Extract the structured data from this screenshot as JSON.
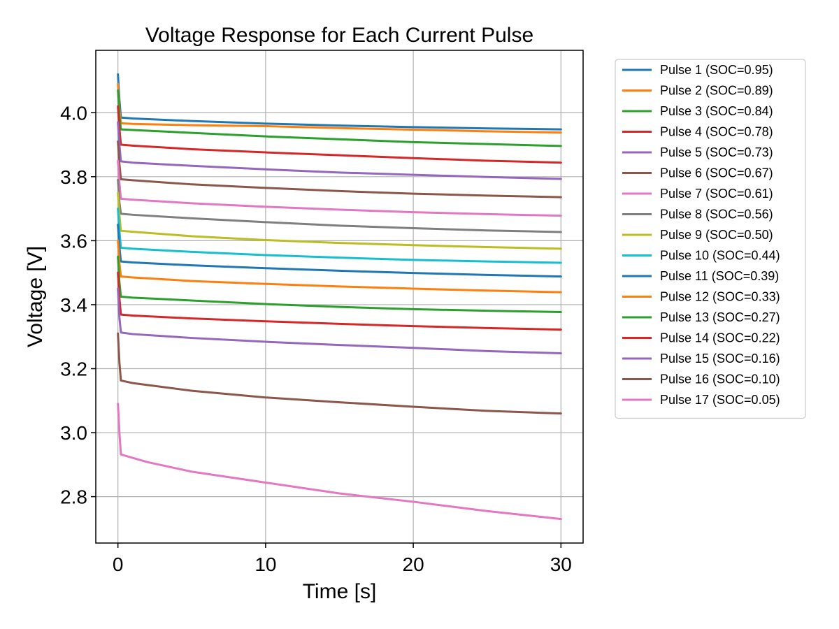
{
  "chart_data": {
    "type": "line",
    "title": "Voltage Response for Each Current Pulse",
    "xlabel": "Time [s]",
    "ylabel": "Voltage [V]",
    "xlim": [
      -1.5,
      31.5
    ],
    "ylim": [
      2.655,
      4.195
    ],
    "xticks": [
      0,
      10,
      20,
      30
    ],
    "xtick_labels": [
      "0",
      "10",
      "20",
      "30"
    ],
    "yticks": [
      2.8,
      3.0,
      3.2,
      3.4,
      3.6,
      3.8,
      4.0
    ],
    "ytick_labels": [
      "2.8",
      "3.0",
      "3.2",
      "3.4",
      "3.6",
      "3.8",
      "4.0"
    ],
    "grid": true,
    "legend_position": "outside-right-top",
    "series": [
      {
        "name": "Pulse 1 (SOC=0.95)",
        "color": "#1f77b4",
        "x": [
          0,
          0.1,
          0.2,
          1,
          5,
          10,
          15,
          20,
          25,
          30
        ],
        "y": [
          4.12,
          4.04,
          3.985,
          3.982,
          3.974,
          3.966,
          3.96,
          3.955,
          3.951,
          3.948
        ]
      },
      {
        "name": "Pulse 2 (SOC=0.89)",
        "color": "#ff7f0e",
        "x": [
          0,
          0.1,
          0.2,
          1,
          5,
          10,
          15,
          20,
          25,
          30
        ],
        "y": [
          4.09,
          4.01,
          3.967,
          3.965,
          3.961,
          3.958,
          3.952,
          3.947,
          3.942,
          3.938
        ]
      },
      {
        "name": "Pulse 3 (SOC=0.84)",
        "color": "#2ca02c",
        "x": [
          0,
          0.1,
          0.2,
          1,
          5,
          10,
          15,
          20,
          25,
          30
        ],
        "y": [
          4.07,
          3.99,
          3.948,
          3.946,
          3.937,
          3.926,
          3.917,
          3.908,
          3.902,
          3.896
        ]
      },
      {
        "name": "Pulse 4 (SOC=0.78)",
        "color": "#d62728",
        "x": [
          0,
          0.1,
          0.2,
          1,
          5,
          10,
          15,
          20,
          25,
          30
        ],
        "y": [
          4.02,
          3.95,
          3.9,
          3.897,
          3.886,
          3.876,
          3.867,
          3.858,
          3.85,
          3.844
        ]
      },
      {
        "name": "Pulse 5 (SOC=0.73)",
        "color": "#9467bd",
        "x": [
          0,
          0.1,
          0.2,
          1,
          5,
          10,
          15,
          20,
          25,
          30
        ],
        "y": [
          3.97,
          3.9,
          3.848,
          3.844,
          3.834,
          3.823,
          3.813,
          3.806,
          3.799,
          3.793
        ]
      },
      {
        "name": "Pulse 6 (SOC=0.67)",
        "color": "#8c564b",
        "x": [
          0,
          0.1,
          0.2,
          1,
          5,
          10,
          15,
          20,
          25,
          30
        ],
        "y": [
          3.91,
          3.84,
          3.792,
          3.789,
          3.776,
          3.765,
          3.755,
          3.747,
          3.741,
          3.736
        ]
      },
      {
        "name": "Pulse 7 (SOC=0.61)",
        "color": "#e377c2",
        "x": [
          0,
          0.1,
          0.2,
          1,
          5,
          10,
          15,
          20,
          25,
          30
        ],
        "y": [
          3.85,
          3.78,
          3.731,
          3.728,
          3.717,
          3.706,
          3.697,
          3.689,
          3.683,
          3.678
        ]
      },
      {
        "name": "Pulse 8 (SOC=0.56)",
        "color": "#7f7f7f",
        "x": [
          0,
          0.1,
          0.2,
          1,
          5,
          10,
          15,
          20,
          25,
          30
        ],
        "y": [
          3.79,
          3.72,
          3.684,
          3.681,
          3.67,
          3.658,
          3.647,
          3.639,
          3.632,
          3.627
        ]
      },
      {
        "name": "Pulse 9 (SOC=0.50)",
        "color": "#bcbd22",
        "x": [
          0,
          0.1,
          0.2,
          1,
          5,
          10,
          15,
          20,
          25,
          30
        ],
        "y": [
          3.75,
          3.68,
          3.631,
          3.628,
          3.614,
          3.602,
          3.593,
          3.586,
          3.58,
          3.575
        ]
      },
      {
        "name": "Pulse 10 (SOC=0.44)",
        "color": "#17becf",
        "x": [
          0,
          0.1,
          0.2,
          1,
          5,
          10,
          15,
          20,
          25,
          30
        ],
        "y": [
          3.7,
          3.63,
          3.578,
          3.575,
          3.565,
          3.555,
          3.547,
          3.54,
          3.535,
          3.531
        ]
      },
      {
        "name": "Pulse 11 (SOC=0.39)",
        "color": "#1f77b4",
        "x": [
          0,
          0.1,
          0.2,
          1,
          5,
          10,
          15,
          20,
          25,
          30
        ],
        "y": [
          3.65,
          3.58,
          3.535,
          3.532,
          3.523,
          3.514,
          3.506,
          3.499,
          3.493,
          3.488
        ]
      },
      {
        "name": "Pulse 12 (SOC=0.33)",
        "color": "#ff7f0e",
        "x": [
          0,
          0.1,
          0.2,
          1,
          5,
          10,
          15,
          20,
          25,
          30
        ],
        "y": [
          3.6,
          3.53,
          3.488,
          3.485,
          3.474,
          3.465,
          3.457,
          3.45,
          3.444,
          3.439
        ]
      },
      {
        "name": "Pulse 13 (SOC=0.27)",
        "color": "#2ca02c",
        "x": [
          0,
          0.1,
          0.2,
          1,
          5,
          10,
          15,
          20,
          25,
          30
        ],
        "y": [
          3.55,
          3.47,
          3.425,
          3.422,
          3.413,
          3.402,
          3.393,
          3.386,
          3.381,
          3.377
        ]
      },
      {
        "name": "Pulse 14 (SOC=0.22)",
        "color": "#d62728",
        "x": [
          0,
          0.1,
          0.2,
          1,
          5,
          10,
          15,
          20,
          25,
          30
        ],
        "y": [
          3.5,
          3.42,
          3.369,
          3.366,
          3.357,
          3.348,
          3.34,
          3.333,
          3.327,
          3.322
        ]
      },
      {
        "name": "Pulse 15 (SOC=0.16)",
        "color": "#9467bd",
        "x": [
          0,
          0.1,
          0.2,
          1,
          5,
          10,
          15,
          20,
          25,
          30
        ],
        "y": [
          3.45,
          3.36,
          3.313,
          3.308,
          3.296,
          3.284,
          3.274,
          3.265,
          3.255,
          3.248
        ]
      },
      {
        "name": "Pulse 16 (SOC=0.10)",
        "color": "#8c564b",
        "x": [
          0,
          0.1,
          0.2,
          1,
          5,
          10,
          15,
          20,
          25,
          30
        ],
        "y": [
          3.31,
          3.22,
          3.163,
          3.155,
          3.131,
          3.11,
          3.095,
          3.081,
          3.068,
          3.06
        ]
      },
      {
        "name": "Pulse 17 (SOC=0.05)",
        "color": "#e377c2",
        "x": [
          0,
          0.1,
          0.2,
          1,
          2,
          5,
          10,
          15,
          20,
          25,
          30
        ],
        "y": [
          3.09,
          3.0,
          2.932,
          2.921,
          2.908,
          2.878,
          2.844,
          2.81,
          2.784,
          2.755,
          2.73
        ]
      }
    ]
  }
}
